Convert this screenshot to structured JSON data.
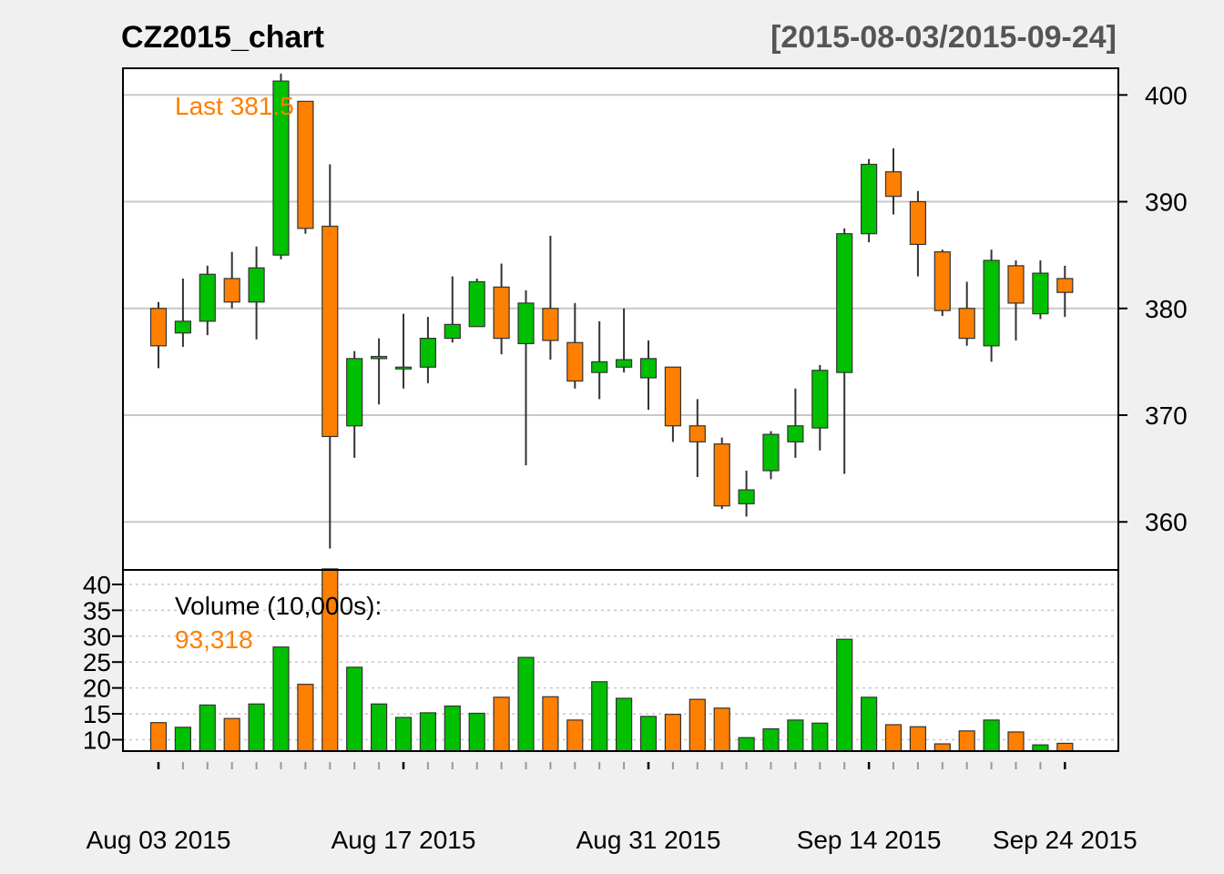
{
  "chart_data": {
    "type": "candlestick",
    "title": "CZ2015_chart",
    "date_range": "[2015-08-03/2015-09-24]",
    "last_label": "Last 381.5",
    "volume_label": "Volume (10,000s):",
    "volume_last": "93,318",
    "price_ticks": [
      "400",
      "390",
      "380",
      "370",
      "360"
    ],
    "price_tick_values": [
      400,
      390,
      380,
      370,
      360
    ],
    "volume_ticks": [
      "40",
      "35",
      "30",
      "25",
      "20",
      "15",
      "10"
    ],
    "volume_tick_values": [
      40,
      35,
      30,
      25,
      20,
      15,
      10
    ],
    "x_labels": [
      {
        "index": 0,
        "label": "Aug 03 2015"
      },
      {
        "index": 10,
        "label": "Aug 17 2015"
      },
      {
        "index": 20,
        "label": "Aug 31 2015"
      },
      {
        "index": 29,
        "label": "Sep 14 2015"
      },
      {
        "index": 37,
        "label": "Sep 24 2015"
      }
    ],
    "price_range": [
      355.5,
      402.5
    ],
    "volume_range": [
      7.8,
      42.8
    ],
    "grid": true,
    "colors": {
      "up": "#00c000",
      "down": "#ff7f00",
      "grid": "#c8c8c8",
      "background": "#f0f0f0",
      "panel": "#ffffff"
    },
    "series": [
      {
        "date": "2015-08-03",
        "open": 380.0,
        "high": 380.6,
        "low": 374.4,
        "close": 376.5,
        "volume": 13.3
      },
      {
        "date": "2015-08-04",
        "open": 377.7,
        "high": 382.8,
        "low": 376.4,
        "close": 378.8,
        "volume": 12.4
      },
      {
        "date": "2015-08-05",
        "open": 378.8,
        "high": 384.0,
        "low": 377.5,
        "close": 383.2,
        "volume": 16.7
      },
      {
        "date": "2015-08-06",
        "open": 382.8,
        "high": 385.3,
        "low": 380.0,
        "close": 380.6,
        "volume": 14.1
      },
      {
        "date": "2015-08-07",
        "open": 380.6,
        "high": 385.8,
        "low": 377.1,
        "close": 383.8,
        "volume": 16.9
      },
      {
        "date": "2015-08-10",
        "open": 385.0,
        "high": 402.0,
        "low": 384.6,
        "close": 401.3,
        "volume": 27.9
      },
      {
        "date": "2015-08-11",
        "open": 399.4,
        "high": 399.4,
        "low": 387.0,
        "close": 387.5,
        "volume": 20.7
      },
      {
        "date": "2015-08-12",
        "open": 387.7,
        "high": 393.5,
        "low": 357.5,
        "close": 368.0,
        "volume": 43.0
      },
      {
        "date": "2015-08-13",
        "open": 369.0,
        "high": 376.0,
        "low": 366.0,
        "close": 375.3,
        "volume": 24.0
      },
      {
        "date": "2015-08-14",
        "open": 375.3,
        "high": 377.2,
        "low": 371.0,
        "close": 375.5,
        "volume": 16.9
      },
      {
        "date": "2015-08-17",
        "open": 374.5,
        "high": 379.5,
        "low": 372.5,
        "close": 374.5,
        "volume": 14.3
      },
      {
        "date": "2015-08-18",
        "open": 374.5,
        "high": 379.2,
        "low": 373.0,
        "close": 377.2,
        "volume": 15.2
      },
      {
        "date": "2015-08-19",
        "open": 377.2,
        "high": 383.0,
        "low": 376.8,
        "close": 378.5,
        "volume": 16.5
      },
      {
        "date": "2015-08-20",
        "open": 378.3,
        "high": 382.8,
        "low": 378.3,
        "close": 382.5,
        "volume": 15.1
      },
      {
        "date": "2015-08-21",
        "open": 382.0,
        "high": 384.2,
        "low": 375.7,
        "close": 377.2,
        "volume": 18.2
      },
      {
        "date": "2015-08-24",
        "open": 376.7,
        "high": 381.7,
        "low": 365.3,
        "close": 380.5,
        "volume": 25.9
      },
      {
        "date": "2015-08-25",
        "open": 380.0,
        "high": 386.8,
        "low": 375.2,
        "close": 377.0,
        "volume": 18.3
      },
      {
        "date": "2015-08-26",
        "open": 376.8,
        "high": 380.5,
        "low": 372.5,
        "close": 373.2,
        "volume": 13.8
      },
      {
        "date": "2015-08-27",
        "open": 374.0,
        "high": 378.8,
        "low": 371.5,
        "close": 375.0,
        "volume": 21.2
      },
      {
        "date": "2015-08-28",
        "open": 374.5,
        "high": 380.0,
        "low": 374.0,
        "close": 375.2,
        "volume": 18.0
      },
      {
        "date": "2015-08-31",
        "open": 373.5,
        "high": 377.0,
        "low": 370.5,
        "close": 375.3,
        "volume": 14.5
      },
      {
        "date": "2015-09-01",
        "open": 374.5,
        "high": 374.5,
        "low": 367.5,
        "close": 369.0,
        "volume": 14.9
      },
      {
        "date": "2015-09-02",
        "open": 369.0,
        "high": 371.5,
        "low": 364.2,
        "close": 367.5,
        "volume": 17.8
      },
      {
        "date": "2015-09-03",
        "open": 367.3,
        "high": 367.9,
        "low": 361.2,
        "close": 361.5,
        "volume": 16.1
      },
      {
        "date": "2015-09-04",
        "open": 361.7,
        "high": 364.8,
        "low": 360.5,
        "close": 363.0,
        "volume": 10.4
      },
      {
        "date": "2015-09-08",
        "open": 364.8,
        "high": 368.5,
        "low": 364.0,
        "close": 368.2,
        "volume": 12.1
      },
      {
        "date": "2015-09-09",
        "open": 367.5,
        "high": 372.5,
        "low": 366.0,
        "close": 369.0,
        "volume": 13.8
      },
      {
        "date": "2015-09-10",
        "open": 368.8,
        "high": 374.7,
        "low": 366.7,
        "close": 374.2,
        "volume": 13.2
      },
      {
        "date": "2015-09-11",
        "open": 374.0,
        "high": 387.5,
        "low": 364.5,
        "close": 387.0,
        "volume": 29.4
      },
      {
        "date": "2015-09-14",
        "open": 387.0,
        "high": 394.0,
        "low": 386.2,
        "close": 393.5,
        "volume": 18.2
      },
      {
        "date": "2015-09-15",
        "open": 392.8,
        "high": 395.0,
        "low": 388.8,
        "close": 390.5,
        "volume": 12.9
      },
      {
        "date": "2015-09-16",
        "open": 390.0,
        "high": 391.0,
        "low": 383.0,
        "close": 386.0,
        "volume": 12.5
      },
      {
        "date": "2015-09-17",
        "open": 385.3,
        "high": 385.5,
        "low": 379.3,
        "close": 379.8,
        "volume": 9.2
      },
      {
        "date": "2015-09-18",
        "open": 380.0,
        "high": 382.5,
        "low": 376.5,
        "close": 377.2,
        "volume": 11.7
      },
      {
        "date": "2015-09-21",
        "open": 376.5,
        "high": 385.5,
        "low": 375.0,
        "close": 384.5,
        "volume": 13.8
      },
      {
        "date": "2015-09-22",
        "open": 384.0,
        "high": 384.5,
        "low": 377.0,
        "close": 380.5,
        "volume": 11.5
      },
      {
        "date": "2015-09-23",
        "open": 379.5,
        "high": 384.5,
        "low": 379.0,
        "close": 383.3,
        "volume": 9.0
      },
      {
        "date": "2015-09-24",
        "open": 382.8,
        "high": 384.0,
        "low": 379.2,
        "close": 381.5,
        "volume": 9.3
      }
    ]
  }
}
